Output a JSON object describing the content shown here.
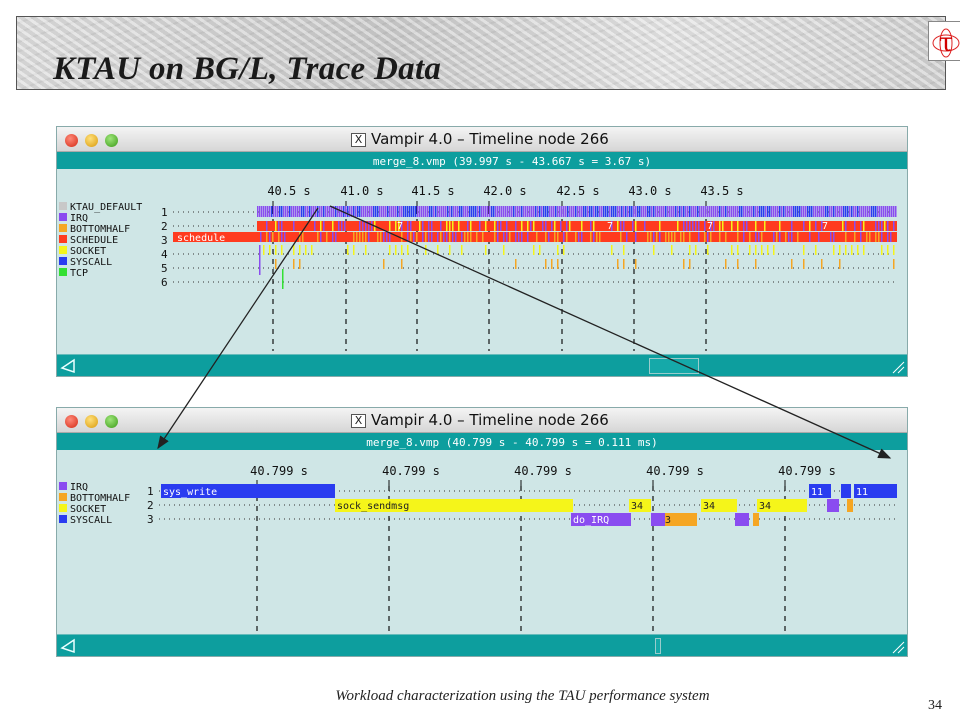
{
  "slide": {
    "title": "KTAU on BG/L, Trace Data",
    "logo_glyph": "τ",
    "footer": "Workload characterization using the TAU performance system",
    "page_number": "34"
  },
  "windows": {
    "top": {
      "title": "Vampir 4.0 – Timeline node 266",
      "subtitle": "merge_8.vmp (39.997 s - 43.667 s = 3.67 s)",
      "x_ticks": [
        "40.5 s",
        "41.0 s",
        "41.5 s",
        "42.0 s",
        "42.5 s",
        "43.0 s",
        "43.5 s"
      ],
      "legend": [
        {
          "label": "KTAU_DEFAULT",
          "color": "#c8c8c8"
        },
        {
          "label": "IRQ",
          "color": "#8a4cf0"
        },
        {
          "label": "BOTTOMHALF",
          "color": "#f5a623"
        },
        {
          "label": "SCHEDULE",
          "color": "#ff3b1f"
        },
        {
          "label": "SOCKET",
          "color": "#f5f51a"
        },
        {
          "label": "SYSCALL",
          "color": "#2a3cf0"
        },
        {
          "label": "TCP",
          "color": "#33e033"
        }
      ],
      "rows": [
        "1",
        "2",
        "3",
        "4",
        "5",
        "6"
      ],
      "labels": {
        "schedule": "schedule",
        "count": "7"
      }
    },
    "bottom": {
      "title": "Vampir 4.0 – Timeline node 266",
      "subtitle": "merge_8.vmp (40.799 s - 40.799 s = 0.111 ms)",
      "x_ticks": [
        "40.799 s",
        "40.799 s",
        "40.799 s",
        "40.799 s",
        "40.799 s"
      ],
      "legend": [
        {
          "label": "IRQ",
          "color": "#8a4cf0"
        },
        {
          "label": "BOTTOMHALF",
          "color": "#f5a623"
        },
        {
          "label": "SOCKET",
          "color": "#f5f51a"
        },
        {
          "label": "SYSCALL",
          "color": "#2a3cf0"
        }
      ],
      "rows": [
        "1",
        "2",
        "3"
      ],
      "labels": {
        "sys_write": "sys_write",
        "sock_sendmsg": "sock_sendmsg",
        "do_irq": "do_IRQ",
        "n34": "34",
        "n3": "3",
        "n11": "11"
      }
    }
  }
}
